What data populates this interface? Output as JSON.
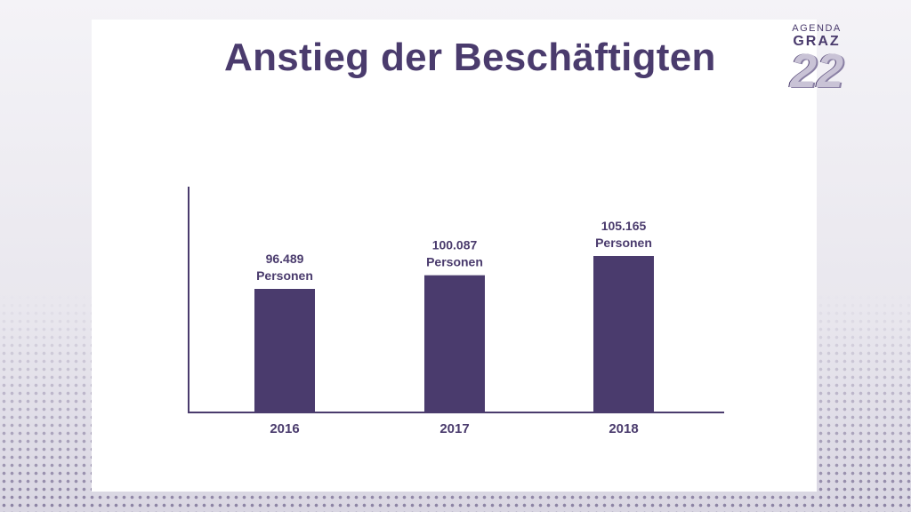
{
  "logo": {
    "line1": "AGENDA",
    "line2": "GRAZ",
    "number": "22"
  },
  "chart_data": {
    "type": "bar",
    "title": "Anstieg der Beschäftigten",
    "categories": [
      "2016",
      "2017",
      "2018"
    ],
    "values": [
      96489,
      100087,
      105165
    ],
    "value_labels": [
      "96.489",
      "100.087",
      "105.165"
    ],
    "unit_label": "Personen",
    "xlabel": "",
    "ylabel": "",
    "grid": false,
    "legend": "none",
    "bar_color": "#4a3b6d"
  }
}
